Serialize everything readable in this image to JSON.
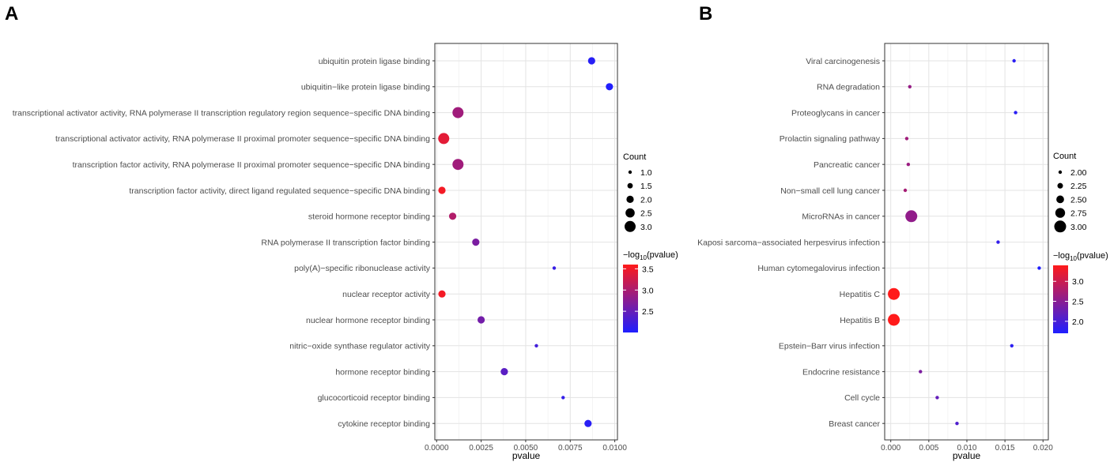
{
  "chart_data": [
    {
      "panel": "A",
      "type": "scatter",
      "xlabel": "pvalue",
      "xlim": [
        -0.0001,
        0.01015
      ],
      "xticks": [
        0.0,
        0.0025,
        0.005,
        0.0075,
        0.01
      ],
      "xtick_labels": [
        "0.0000",
        "0.0025",
        "0.0050",
        "0.0075",
        "0.0100"
      ],
      "count_legend": {
        "title": "Count",
        "labels": [
          "1.0",
          "1.5",
          "2.0",
          "2.5",
          "3.0"
        ],
        "values": [
          1.0,
          1.5,
          2.0,
          2.5,
          3.0
        ]
      },
      "color_legend": {
        "title_prefix": "−log",
        "title_sub": "10",
        "title_suffix": "(pvalue)",
        "labels": [
          "3.5",
          "3.0",
          "2.5"
        ],
        "values": [
          3.5,
          3.0,
          2.5
        ],
        "range": [
          2.0,
          3.6
        ]
      },
      "colors": {
        "low": "#1f1fff",
        "high": "#ff1a1a"
      },
      "points": [
        {
          "term": "ubiquitin protein ligase binding",
          "pvalue": 0.0087,
          "count": 2
        },
        {
          "term": "ubiquitin−like protein ligase binding",
          "pvalue": 0.0097,
          "count": 2
        },
        {
          "term": "transcriptional activator activity, RNA polymerase II transcription regulatory region sequence−specific DNA binding",
          "pvalue": 0.0012,
          "count": 3
        },
        {
          "term": "transcriptional activator activity, RNA polymerase II proximal promoter sequence−specific DNA binding",
          "pvalue": 0.0004,
          "count": 3
        },
        {
          "term": "transcription factor activity, RNA polymerase II proximal promoter sequence−specific DNA binding",
          "pvalue": 0.0012,
          "count": 3
        },
        {
          "term": "transcription factor activity, direct ligand regulated sequence−specific DNA binding",
          "pvalue": 0.0003,
          "count": 2
        },
        {
          "term": "steroid hormone receptor binding",
          "pvalue": 0.0009,
          "count": 2
        },
        {
          "term": "RNA polymerase II transcription factor binding",
          "pvalue": 0.0022,
          "count": 2
        },
        {
          "term": "poly(A)−specific ribonuclease activity",
          "pvalue": 0.0066,
          "count": 1
        },
        {
          "term": "nuclear receptor activity",
          "pvalue": 0.0003,
          "count": 2
        },
        {
          "term": "nuclear hormone receptor binding",
          "pvalue": 0.0025,
          "count": 2
        },
        {
          "term": "nitric−oxide synthase regulator activity",
          "pvalue": 0.0056,
          "count": 1
        },
        {
          "term": "hormone receptor binding",
          "pvalue": 0.0038,
          "count": 2
        },
        {
          "term": "glucocorticoid receptor binding",
          "pvalue": 0.0071,
          "count": 1
        },
        {
          "term": "cytokine receptor binding",
          "pvalue": 0.0085,
          "count": 2
        }
      ]
    },
    {
      "panel": "B",
      "type": "scatter",
      "xlabel": "pvalue",
      "xlim": [
        -0.0008,
        0.0207
      ],
      "xticks": [
        0.0,
        0.005,
        0.01,
        0.015,
        0.02
      ],
      "xtick_labels": [
        "0.000",
        "0.005",
        "0.010",
        "0.015",
        "0.020"
      ],
      "count_legend": {
        "title": "Count",
        "labels": [
          "2.00",
          "2.25",
          "2.50",
          "2.75",
          "3.00"
        ],
        "values": [
          2.0,
          2.25,
          2.5,
          2.75,
          3.0
        ]
      },
      "color_legend": {
        "title_prefix": "−log",
        "title_sub": "10",
        "title_suffix": "(pvalue)",
        "labels": [
          "3.0",
          "2.5",
          "2.0"
        ],
        "values": [
          3.0,
          2.5,
          2.0
        ],
        "range": [
          1.7,
          3.4
        ]
      },
      "colors": {
        "low": "#1f1fff",
        "high": "#ff1a1a"
      },
      "points": [
        {
          "term": "Viral carcinogenesis",
          "pvalue": 0.0162,
          "count": 2
        },
        {
          "term": "RNA degradation",
          "pvalue": 0.0025,
          "count": 2
        },
        {
          "term": "Proteoglycans in cancer",
          "pvalue": 0.0164,
          "count": 2
        },
        {
          "term": "Prolactin signaling pathway",
          "pvalue": 0.0021,
          "count": 2
        },
        {
          "term": "Pancreatic cancer",
          "pvalue": 0.0023,
          "count": 2
        },
        {
          "term": "Non−small cell lung cancer",
          "pvalue": 0.0019,
          "count": 2
        },
        {
          "term": "MicroRNAs in cancer",
          "pvalue": 0.0027,
          "count": 3
        },
        {
          "term": "Kaposi sarcoma−associated herpesvirus infection",
          "pvalue": 0.0141,
          "count": 2
        },
        {
          "term": "Human cytomegalovirus infection",
          "pvalue": 0.0195,
          "count": 2
        },
        {
          "term": "Hepatitis C",
          "pvalue": 0.0004,
          "count": 3
        },
        {
          "term": "Hepatitis B",
          "pvalue": 0.0004,
          "count": 3
        },
        {
          "term": "Epstein−Barr virus infection",
          "pvalue": 0.0159,
          "count": 2
        },
        {
          "term": "Endocrine resistance",
          "pvalue": 0.0039,
          "count": 2
        },
        {
          "term": "Cell cycle",
          "pvalue": 0.0061,
          "count": 2
        },
        {
          "term": "Breast cancer",
          "pvalue": 0.0087,
          "count": 2
        }
      ]
    }
  ]
}
